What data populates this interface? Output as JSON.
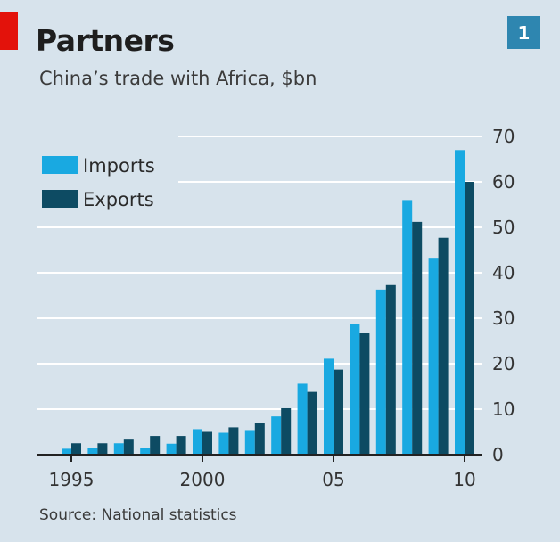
{
  "header": {
    "number": "1",
    "title": "Partners",
    "subtitle": "China’s trade with Africa, $bn"
  },
  "footer": {
    "source": "Source: National statistics"
  },
  "colors": {
    "background": "#d7e3ec",
    "imports": "#19a9e1",
    "exports": "#0d4b63",
    "gridline": "#ffffff",
    "accent_tab": "#e3120b",
    "number_box": "#2e86b0"
  },
  "chart_data": {
    "type": "bar",
    "categories": [
      "1995",
      "1996",
      "1997",
      "1998",
      "1999",
      "2000",
      "2001",
      "2002",
      "2003",
      "2004",
      "2005",
      "2006",
      "2007",
      "2008",
      "2009",
      "2010"
    ],
    "x_tick_labels": [
      {
        "category": "1995",
        "label": "1995"
      },
      {
        "category": "2000",
        "label": "2000"
      },
      {
        "category": "2005",
        "label": "05"
      },
      {
        "category": "2010",
        "label": "10"
      }
    ],
    "series": [
      {
        "name": "Imports",
        "values": [
          1.3,
          1.4,
          2.5,
          1.5,
          2.4,
          5.6,
          4.8,
          5.4,
          8.4,
          15.6,
          21.1,
          28.8,
          36.3,
          56.0,
          43.3,
          67.0
        ]
      },
      {
        "name": "Exports",
        "values": [
          2.5,
          2.5,
          3.3,
          4.1,
          4.1,
          5.0,
          6.0,
          7.0,
          10.2,
          13.8,
          18.7,
          26.7,
          37.3,
          51.2,
          47.7,
          60.0
        ]
      }
    ],
    "ylim": [
      0,
      70
    ],
    "y_ticks": [
      0,
      10,
      20,
      30,
      40,
      50,
      60,
      70
    ],
    "y_axis_side": "right",
    "grid": true,
    "legend_position": "top-left",
    "title": "Partners",
    "subtitle": "China’s trade with Africa, $bn"
  }
}
